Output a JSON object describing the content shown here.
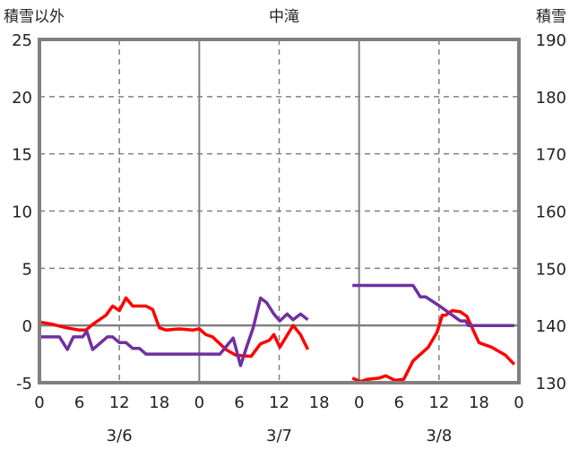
{
  "chart_data": {
    "type": "line",
    "title": "中滝",
    "left_axis_label": "積雪以外",
    "right_axis_label": "積雪",
    "left_ylim": [
      -5,
      25
    ],
    "left_ticks": [
      -5,
      0,
      5,
      10,
      15,
      20,
      25
    ],
    "right_ylim": [
      130,
      190
    ],
    "right_ticks": [
      130,
      140,
      150,
      160,
      170,
      180,
      190
    ],
    "xlim_hours": [
      0,
      72
    ],
    "x_ticks_hours": [
      0,
      6,
      12,
      18,
      24,
      30,
      36,
      42,
      48,
      54,
      60,
      66,
      72
    ],
    "x_tick_labels": [
      "0",
      "6",
      "12",
      "18",
      "0",
      "6",
      "12",
      "18",
      "0",
      "6",
      "12",
      "18",
      "0"
    ],
    "days": [
      "3/6",
      "3/7",
      "3/8"
    ],
    "grid": true,
    "series": [
      {
        "name": "red",
        "axis": "left",
        "color": "#ff0000",
        "segments": [
          [
            [
              0,
              0.3
            ],
            [
              2,
              0.1
            ],
            [
              4,
              -0.2
            ],
            [
              6,
              -0.4
            ],
            [
              7,
              -0.4
            ],
            [
              8,
              0.1
            ],
            [
              10,
              0.9
            ],
            [
              11,
              1.7
            ],
            [
              12,
              1.3
            ],
            [
              13,
              2.4
            ],
            [
              14,
              1.7
            ],
            [
              16,
              1.7
            ],
            [
              17,
              1.4
            ],
            [
              18,
              -0.2
            ],
            [
              19,
              -0.4
            ],
            [
              21,
              -0.3
            ],
            [
              23,
              -0.4
            ],
            [
              24,
              -0.3
            ],
            [
              25,
              -0.8
            ],
            [
              26,
              -1.0
            ],
            [
              28,
              -2.1
            ],
            [
              29.5,
              -2.6
            ],
            [
              31.8,
              -2.7
            ],
            [
              33.2,
              -1.6
            ],
            [
              34.5,
              -1.3
            ],
            [
              35.2,
              -0.8
            ],
            [
              36.1,
              -1.9
            ],
            [
              38.1,
              0.0
            ],
            [
              39.2,
              -0.8
            ],
            [
              40.3,
              -2.1
            ]
          ],
          [
            [
              47,
              -4.6
            ],
            [
              48.2,
              -4.9
            ],
            [
              49.3,
              -4.7
            ],
            [
              51,
              -4.6
            ],
            [
              52,
              -4.4
            ],
            [
              53.4,
              -4.8
            ],
            [
              54.7,
              -4.7
            ],
            [
              56.1,
              -3.1
            ],
            [
              58.4,
              -1.9
            ],
            [
              59.7,
              -0.6
            ],
            [
              60.5,
              0.9
            ],
            [
              61,
              0.9
            ],
            [
              62,
              1.3
            ],
            [
              63.2,
              1.2
            ],
            [
              64.2,
              0.8
            ],
            [
              66,
              -1.5
            ],
            [
              67.9,
              -1.9
            ],
            [
              70,
              -2.6
            ],
            [
              71.3,
              -3.4
            ]
          ]
        ]
      },
      {
        "name": "purple",
        "axis": "right",
        "color": "#7030a0",
        "segments": [
          [
            [
              0,
              138
            ],
            [
              3,
              138
            ],
            [
              4.2,
              135.8
            ],
            [
              5.1,
              138
            ],
            [
              6.5,
              138
            ],
            [
              7.1,
              139
            ],
            [
              8,
              135.8
            ],
            [
              10.2,
              138
            ],
            [
              11,
              138
            ],
            [
              12,
              137
            ],
            [
              13,
              137
            ],
            [
              14,
              136
            ],
            [
              15,
              136
            ],
            [
              16,
              135
            ],
            [
              27.1,
              135
            ],
            [
              29.1,
              137.8
            ],
            [
              30.2,
              133
            ],
            [
              31.1,
              136.2
            ],
            [
              32.1,
              139.6
            ],
            [
              33.2,
              144.8
            ],
            [
              34.1,
              144
            ],
            [
              35.2,
              142
            ],
            [
              36.1,
              140.8
            ],
            [
              37.2,
              142
            ],
            [
              38.1,
              141
            ],
            [
              39.2,
              142
            ],
            [
              40.3,
              141
            ]
          ],
          [
            [
              47,
              147
            ],
            [
              56.1,
              147
            ],
            [
              57.2,
              145
            ],
            [
              58,
              145
            ],
            [
              60.1,
              143.4
            ],
            [
              62,
              141.8
            ],
            [
              63.2,
              140.8
            ],
            [
              64,
              140.8
            ],
            [
              64.4,
              140
            ],
            [
              71.3,
              140
            ]
          ]
        ]
      }
    ]
  }
}
